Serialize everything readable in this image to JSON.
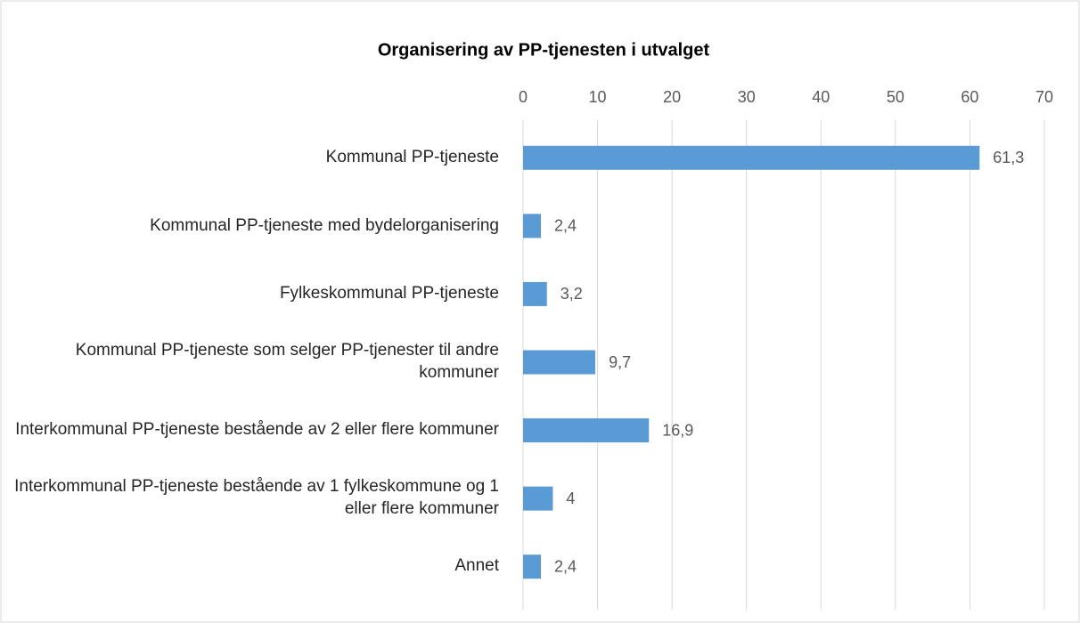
{
  "chart_data": {
    "type": "bar",
    "orientation": "horizontal",
    "title": "Organisering av PP-tjenesten i utvalget",
    "categories": [
      "Kommunal PP-tjeneste",
      "Kommunal PP-tjeneste med bydelorganisering",
      "Fylkeskommunal PP-tjeneste",
      "Kommunal PP-tjeneste som selger PP-tjenester til andre kommuner",
      "Interkommunal PP-tjeneste bestående av 2 eller flere kommuner",
      "Interkommunal PP-tjeneste bestående av 1 fylkeskommune og 1 eller flere kommuner",
      "Annet"
    ],
    "values": [
      61.3,
      2.4,
      3.2,
      9.7,
      16.9,
      4,
      2.4
    ],
    "value_labels": [
      "61,3",
      "2,4",
      "3,2",
      "9,7",
      "16,9",
      "4",
      "2,4"
    ],
    "color": "#5b9bd5",
    "xlim": [
      0,
      70
    ],
    "xticks": [
      0,
      10,
      20,
      30,
      40,
      50,
      60,
      70
    ],
    "grid": true
  }
}
